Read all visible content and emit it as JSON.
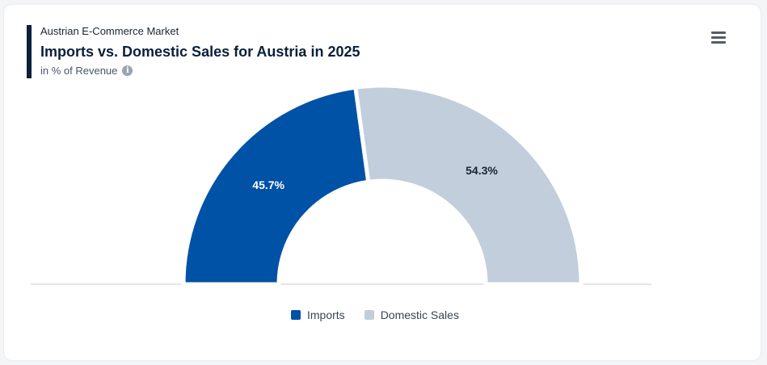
{
  "header": {
    "kicker": "Austrian E-Commerce Market",
    "title": "Imports vs. Domestic Sales for Austria in 2025",
    "subtitle": "in % of Revenue"
  },
  "icons": {
    "info": "info-icon",
    "menu": "hamburger-menu-icon"
  },
  "colors": {
    "imports": "#0052a6",
    "domestic": "#c2cedb",
    "title": "#0b1f3a"
  },
  "chart_data": {
    "type": "pie",
    "variant": "semi-donut",
    "title": "Imports vs. Domestic Sales for Austria in 2025",
    "subtitle": "in % of Revenue",
    "categories": [
      "Imports",
      "Domestic Sales"
    ],
    "values": [
      45.7,
      54.3
    ],
    "data_labels": [
      "45.7%",
      "54.3%"
    ],
    "legend_position": "bottom-center"
  }
}
